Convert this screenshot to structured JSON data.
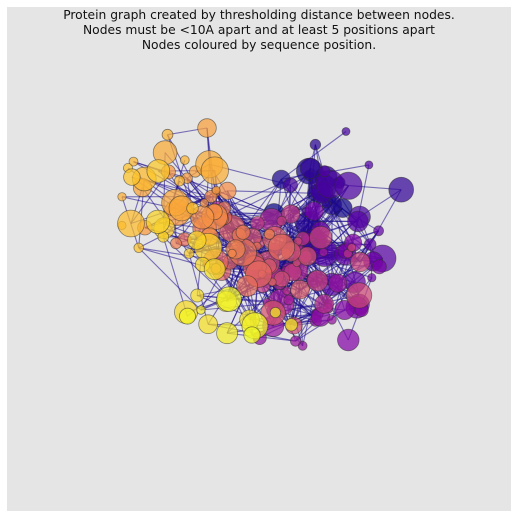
{
  "title_lines": [
    "Protein graph created by thresholding distance between nodes.",
    "Nodes must be <10A apart and at least 5 positions apart",
    "Nodes coloured by sequence position."
  ],
  "chart_data": {
    "type": "network",
    "title": "Protein graph created by thresholding distance between nodes. Nodes must be <10A apart and at least 5 positions apart Nodes coloured by sequence position.",
    "colormap": "plasma",
    "edge_color": "#1a0a8c",
    "node_count": 190,
    "edge_count": 620,
    "seed": 7
  }
}
